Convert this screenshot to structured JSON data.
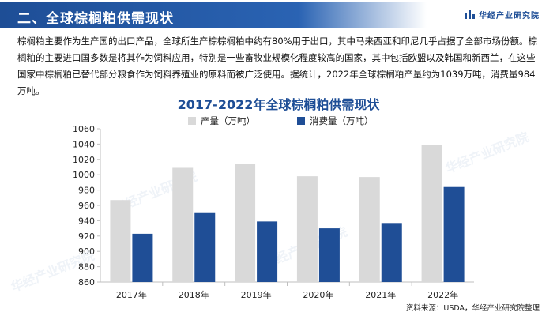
{
  "header": {
    "title": "二、全球棕榈粕供需现状",
    "brand": "华经产业研究院"
  },
  "intro": "棕榈粕主要作为生产国的出口产品，全球所生产棕棕榈粕中约有80%用于出口，其中马来西亚和印尼几乎占据了全部市场份额。棕榈粕的主要进口国多数是将其作为饲料应用，特别是一些畜牧业规模化程度较高的国家，其中包括欧盟以及韩国和新西兰，在这些国家中棕榈粕已替代部分粮食作为饲料养殖业的原料而被广泛使用。据统计，2022年全球棕榈粕产量约为1039万吨，消费量984万吨。",
  "source": "资料来源：USDA，华经产业研究院整理",
  "watermark": "华经产业研究院",
  "colors": {
    "production": "#d9d9d9",
    "consumption": "#1f4e96",
    "accent": "#1e4e96"
  },
  "chart_data": {
    "type": "bar",
    "title": "2017-2022年全球棕榈粕供需现状",
    "categories": [
      "2017年",
      "2018年",
      "2019年",
      "2020年",
      "2021年",
      "2022年"
    ],
    "series": [
      {
        "name": "产量（万吨）",
        "values": [
          967,
          1009,
          1014,
          998,
          997,
          1039
        ]
      },
      {
        "name": "消费量（万吨）",
        "values": [
          923,
          951,
          939,
          930,
          937,
          984
        ]
      }
    ],
    "ylim": [
      860,
      1060
    ],
    "yticks": [
      "860",
      "880",
      "900",
      "920",
      "940",
      "960",
      "980",
      "1000",
      "1020",
      "1040",
      "1060"
    ],
    "grid": false,
    "legend": "top-center"
  }
}
